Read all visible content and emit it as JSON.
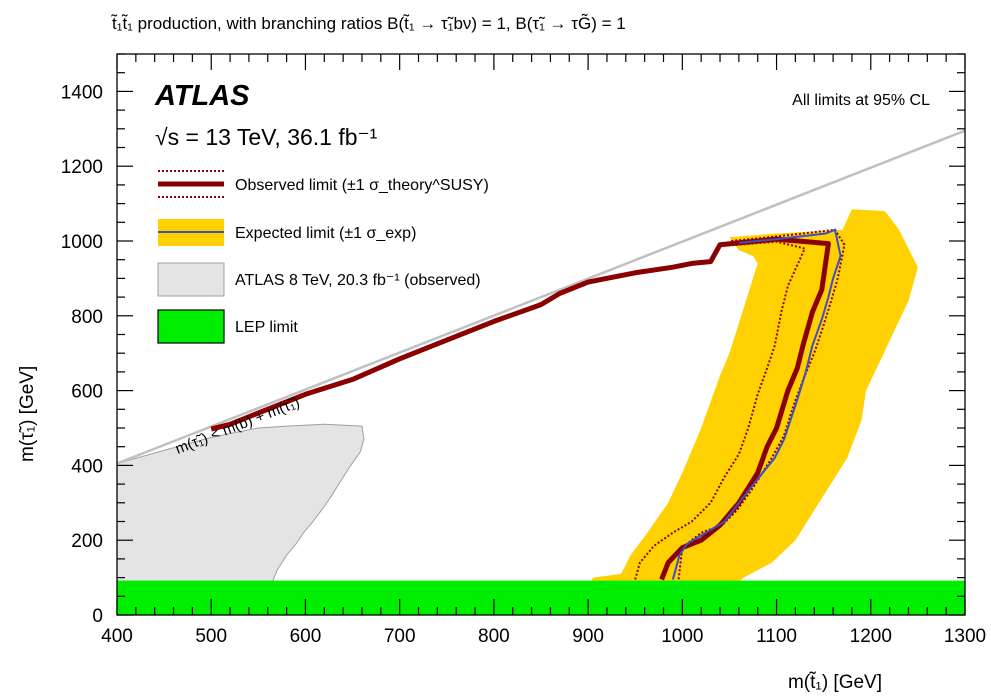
{
  "chart_data": {
    "type": "line",
    "title": "t̃₁t̃₁ production, with branching ratios B(t̃₁ → τ̃₁bν) = 1, B(τ̃₁ → τG̃) = 1",
    "xlabel": "m(t̃₁) [GeV]",
    "ylabel": "m(τ̃₁) [GeV]",
    "xlim": [
      400,
      1300
    ],
    "ylim": [
      0,
      1500
    ],
    "x_ticks": [
      400,
      500,
      600,
      700,
      800,
      900,
      1000,
      1100,
      1200,
      1300
    ],
    "y_ticks": [
      0,
      200,
      400,
      600,
      800,
      1000,
      1200,
      1400
    ],
    "x_tick_labels": [
      "400",
      "500",
      "600",
      "700",
      "800",
      "900",
      "1000",
      "1100",
      "1200",
      "1300"
    ],
    "y_tick_labels": [
      "0",
      "200",
      "400",
      "600",
      "800",
      "1000",
      "1200",
      "1400"
    ],
    "grid": false,
    "legend_position": "top-left",
    "annotations": {
      "experiment": "ATLAS",
      "energy": "√s = 13 TeV, 36.1 fb⁻¹",
      "confidence": "All limits at 95% CL",
      "kinematic_line": "m(τ̃₁) < m(b) + m(τ̃₁)"
    },
    "legend": [
      {
        "key": "observed",
        "label": "Observed limit (±1 σ_theory^SUSY)"
      },
      {
        "key": "expected",
        "label": "Expected limit (±1 σ_exp)"
      },
      {
        "key": "atlas8",
        "label": "ATLAS  8 TeV, 20.3 fb⁻¹ (observed)"
      },
      {
        "key": "lep",
        "label": "LEP limit"
      }
    ],
    "colors": {
      "observed": "#8b0000",
      "expected_line": "#3d4ec7",
      "expected_band": "#ffd100",
      "atlas8_fill": "#e4e4e4",
      "atlas8_edge": "#a0a0a0",
      "lep": "#00ee00",
      "kinematic": "#c0c0c0"
    },
    "series": [
      {
        "name": "Observed limit",
        "points": [
          [
            500,
            497
          ],
          [
            520,
            510
          ],
          [
            550,
            540
          ],
          [
            600,
            590
          ],
          [
            650,
            630
          ],
          [
            700,
            685
          ],
          [
            750,
            735
          ],
          [
            800,
            785
          ],
          [
            850,
            830
          ],
          [
            870,
            860
          ],
          [
            900,
            890
          ],
          [
            950,
            915
          ],
          [
            990,
            930
          ],
          [
            1010,
            940
          ],
          [
            1030,
            945
          ],
          [
            1040,
            990
          ],
          [
            1060,
            995
          ],
          [
            1100,
            1005
          ],
          [
            1155,
            993
          ],
          [
            1148,
            870
          ],
          [
            1138,
            810
          ],
          [
            1128,
            720
          ],
          [
            1122,
            660
          ],
          [
            1112,
            600
          ],
          [
            1100,
            500
          ],
          [
            1090,
            450
          ],
          [
            1080,
            380
          ],
          [
            1060,
            300
          ],
          [
            1040,
            240
          ],
          [
            1020,
            200
          ],
          [
            1000,
            180
          ],
          [
            985,
            140
          ],
          [
            978,
            95
          ]
        ]
      },
      {
        "name": "Observed limit +1 sigma",
        "points": [
          [
            1052,
            1000
          ],
          [
            1100,
            1012
          ],
          [
            1162,
            1030
          ],
          [
            1172,
            990
          ],
          [
            1165,
            900
          ],
          [
            1158,
            840
          ],
          [
            1148,
            760
          ],
          [
            1140,
            700
          ],
          [
            1130,
            640
          ],
          [
            1118,
            560
          ],
          [
            1108,
            480
          ],
          [
            1095,
            420
          ],
          [
            1075,
            340
          ],
          [
            1058,
            280
          ],
          [
            1042,
            240
          ],
          [
            1020,
            220
          ],
          [
            1000,
            180
          ],
          [
            996,
            95
          ]
        ]
      },
      {
        "name": "Observed limit -1 sigma",
        "points": [
          [
            1048,
            988
          ],
          [
            1100,
            998
          ],
          [
            1130,
            980
          ],
          [
            1112,
            880
          ],
          [
            1105,
            810
          ],
          [
            1098,
            720
          ],
          [
            1090,
            660
          ],
          [
            1080,
            590
          ],
          [
            1070,
            500
          ],
          [
            1060,
            430
          ],
          [
            1045,
            370
          ],
          [
            1030,
            300
          ],
          [
            1010,
            250
          ],
          [
            990,
            220
          ],
          [
            970,
            185
          ],
          [
            955,
            140
          ],
          [
            950,
            95
          ]
        ]
      },
      {
        "name": "Expected limit",
        "points": [
          [
            1060,
            995
          ],
          [
            1100,
            1005
          ],
          [
            1152,
            1020
          ],
          [
            1162,
            1030
          ],
          [
            1168,
            960
          ],
          [
            1160,
            900
          ],
          [
            1155,
            850
          ],
          [
            1148,
            790
          ],
          [
            1138,
            720
          ],
          [
            1130,
            640
          ],
          [
            1120,
            560
          ],
          [
            1108,
            470
          ],
          [
            1098,
            420
          ],
          [
            1082,
            370
          ],
          [
            1060,
            300
          ],
          [
            1045,
            250
          ],
          [
            1025,
            220
          ],
          [
            1005,
            190
          ],
          [
            997,
            160
          ],
          [
            990,
            95
          ]
        ]
      },
      {
        "name": "Expected band",
        "points": [
          [
            1050,
            1010
          ],
          [
            1100,
            1020
          ],
          [
            1170,
            1030
          ],
          [
            1180,
            1085
          ],
          [
            1215,
            1080
          ],
          [
            1230,
            1030
          ],
          [
            1250,
            930
          ],
          [
            1240,
            840
          ],
          [
            1225,
            760
          ],
          [
            1210,
            680
          ],
          [
            1195,
            600
          ],
          [
            1190,
            520
          ],
          [
            1175,
            420
          ],
          [
            1160,
            360
          ],
          [
            1140,
            280
          ],
          [
            1120,
            200
          ],
          [
            1095,
            140
          ],
          [
            1065,
            100
          ],
          [
            1050,
            65
          ],
          [
            900,
            65
          ],
          [
            905,
            100
          ],
          [
            935,
            110
          ],
          [
            945,
            160
          ],
          [
            960,
            210
          ],
          [
            985,
            300
          ],
          [
            1000,
            380
          ],
          [
            1020,
            500
          ],
          [
            1030,
            570
          ],
          [
            1040,
            640
          ],
          [
            1050,
            700
          ],
          [
            1060,
            780
          ],
          [
            1070,
            860
          ],
          [
            1080,
            940
          ],
          [
            1075,
            960
          ],
          [
            1060,
            975
          ]
        ]
      },
      {
        "name": "ATLAS 8 TeV observed",
        "points": [
          [
            400,
            405
          ],
          [
            450,
            440
          ],
          [
            500,
            475
          ],
          [
            550,
            500
          ],
          [
            580,
            505
          ],
          [
            620,
            510
          ],
          [
            660,
            505
          ],
          [
            662,
            470
          ],
          [
            658,
            435
          ],
          [
            648,
            400
          ],
          [
            638,
            360
          ],
          [
            628,
            320
          ],
          [
            620,
            290
          ],
          [
            608,
            250
          ],
          [
            598,
            220
          ],
          [
            590,
            190
          ],
          [
            580,
            160
          ],
          [
            570,
            120
          ],
          [
            565,
            90
          ],
          [
            400,
            90
          ]
        ]
      },
      {
        "name": "LEP limit",
        "points": [
          [
            400,
            0
          ],
          [
            1300,
            0
          ],
          [
            1300,
            92
          ],
          [
            400,
            92
          ]
        ]
      },
      {
        "name": "Kinematic limit",
        "points": [
          [
            400,
            405
          ],
          [
            1300,
            1295
          ]
        ]
      }
    ]
  }
}
